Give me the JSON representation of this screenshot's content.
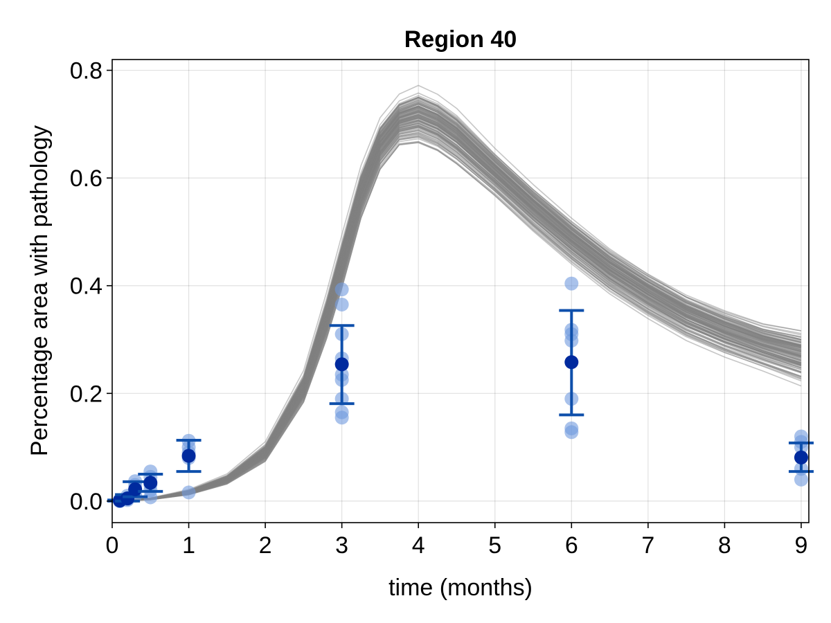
{
  "chart_data": {
    "type": "scatter",
    "title": "Region 40",
    "xlabel": "time (months)",
    "ylabel": "Percentage area with pathology",
    "xlim": [
      0,
      9.1
    ],
    "ylim": [
      -0.04,
      0.82
    ],
    "xticks": [
      "0",
      "1",
      "2",
      "3",
      "4",
      "5",
      "6",
      "7",
      "8",
      "9"
    ],
    "yticks": [
      "0.0",
      "0.2",
      "0.4",
      "0.6",
      "0.8"
    ],
    "grid": true,
    "colors": {
      "trajectory": "#808080",
      "points_light": "#6f99dd",
      "mean_point": "#002a9e",
      "error_bar": "#0e4fab"
    },
    "simulated_trajectories": {
      "count": 120,
      "description_shape": "sigmoidal rise then decay",
      "x": [
        0,
        0.5,
        1.0,
        1.5,
        2.0,
        2.5,
        2.8,
        3.0,
        3.25,
        3.5,
        3.75,
        4.0,
        4.25,
        4.5,
        5.0,
        5.5,
        6.0,
        6.5,
        7.0,
        7.5,
        8.0,
        8.5,
        9.0
      ],
      "center": [
        0.0,
        0.004,
        0.016,
        0.04,
        0.09,
        0.21,
        0.34,
        0.44,
        0.57,
        0.66,
        0.705,
        0.715,
        0.7,
        0.675,
        0.61,
        0.545,
        0.485,
        0.43,
        0.385,
        0.345,
        0.315,
        0.29,
        0.27
      ],
      "spread": [
        0.0,
        0.001,
        0.003,
        0.006,
        0.012,
        0.02,
        0.03,
        0.035,
        0.035,
        0.035,
        0.035,
        0.04,
        0.04,
        0.04,
        0.035,
        0.035,
        0.035,
        0.035,
        0.035,
        0.035,
        0.035,
        0.035,
        0.04
      ]
    },
    "observations": [
      {
        "x": 0.1,
        "points": [
          0.0,
          0.0,
          0.001,
          0.002
        ],
        "mean": 0.001,
        "err_low": 0.0,
        "err_high": 0.002
      },
      {
        "x": 0.2,
        "points": [
          0.002,
          0.004,
          0.006,
          0.01
        ],
        "mean": 0.005,
        "err_low": 0.0,
        "err_high": 0.012
      },
      {
        "x": 0.3,
        "points": [
          0.01,
          0.02,
          0.03,
          0.037
        ],
        "mean": 0.022,
        "err_low": 0.008,
        "err_high": 0.036
      },
      {
        "x": 0.5,
        "points": [
          0.007,
          0.02,
          0.03,
          0.045,
          0.055
        ],
        "mean": 0.034,
        "err_low": 0.018,
        "err_high": 0.05
      },
      {
        "x": 1.0,
        "points": [
          0.016,
          0.08,
          0.09,
          0.1,
          0.112
        ],
        "mean": 0.084,
        "err_low": 0.055,
        "err_high": 0.113
      },
      {
        "x": 3.0,
        "points": [
          0.155,
          0.165,
          0.19,
          0.225,
          0.235,
          0.265,
          0.31,
          0.365,
          0.393
        ],
        "mean": 0.254,
        "err_low": 0.181,
        "err_high": 0.326
      },
      {
        "x": 6.0,
        "points": [
          0.128,
          0.135,
          0.19,
          0.298,
          0.31,
          0.318,
          0.404
        ],
        "mean": 0.258,
        "err_low": 0.16,
        "err_high": 0.354
      },
      {
        "x": 9.0,
        "points": [
          0.04,
          0.06,
          0.1,
          0.11,
          0.12
        ],
        "mean": 0.081,
        "err_low": 0.055,
        "err_high": 0.108
      }
    ]
  }
}
